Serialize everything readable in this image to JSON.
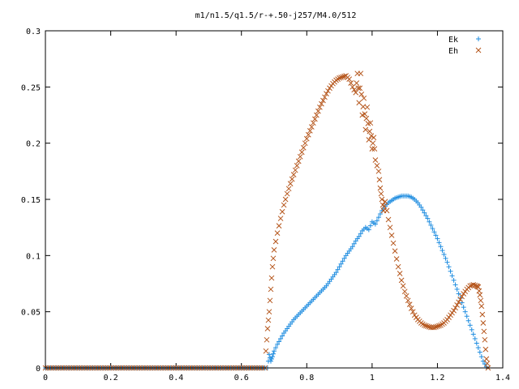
{
  "chart_data": {
    "type": "scatter",
    "title": "m1/n1.5/q1.5/r-+.50-j257/M4.0/512",
    "xlabel": "",
    "ylabel": "",
    "xlim": [
      0,
      1.4
    ],
    "ylim": [
      0,
      0.3
    ],
    "x_ticks": [
      "0",
      "0.2",
      "0.4",
      "0.6",
      "0.8",
      "1",
      "1.2",
      "1.4"
    ],
    "y_ticks": [
      "0",
      "0.05",
      "0.1",
      "0.15",
      "0.2",
      "0.25",
      "0.3"
    ],
    "legend_position": "top-right",
    "grid": false,
    "series": [
      {
        "name": "Ek",
        "marker": "plus",
        "color": "#1f8de0",
        "points": [
          [
            0.68,
            0.0
          ],
          [
            0.685,
            0.012
          ],
          [
            0.69,
            0.006
          ],
          [
            0.695,
            0.01
          ],
          [
            0.7,
            0.015
          ],
          [
            0.71,
            0.021
          ],
          [
            0.72,
            0.026
          ],
          [
            0.73,
            0.031
          ],
          [
            0.74,
            0.035
          ],
          [
            0.75,
            0.039
          ],
          [
            0.76,
            0.043
          ],
          [
            0.77,
            0.046
          ],
          [
            0.78,
            0.049
          ],
          [
            0.79,
            0.052
          ],
          [
            0.8,
            0.055
          ],
          [
            0.81,
            0.058
          ],
          [
            0.82,
            0.061
          ],
          [
            0.83,
            0.064
          ],
          [
            0.84,
            0.067
          ],
          [
            0.85,
            0.07
          ],
          [
            0.86,
            0.073
          ],
          [
            0.87,
            0.077
          ],
          [
            0.88,
            0.081
          ],
          [
            0.89,
            0.085
          ],
          [
            0.9,
            0.09
          ],
          [
            0.91,
            0.095
          ],
          [
            0.92,
            0.1
          ],
          [
            0.93,
            0.104
          ],
          [
            0.94,
            0.108
          ],
          [
            0.95,
            0.113
          ],
          [
            0.96,
            0.117
          ],
          [
            0.97,
            0.122
          ],
          [
            0.98,
            0.125
          ],
          [
            0.99,
            0.123
          ],
          [
            1.0,
            0.13
          ],
          [
            1.01,
            0.128
          ],
          [
            1.02,
            0.134
          ],
          [
            1.03,
            0.14
          ],
          [
            1.04,
            0.144
          ],
          [
            1.05,
            0.147
          ],
          [
            1.06,
            0.149
          ],
          [
            1.07,
            0.151
          ],
          [
            1.08,
            0.152
          ],
          [
            1.09,
            0.153
          ],
          [
            1.1,
            0.153
          ],
          [
            1.11,
            0.153
          ],
          [
            1.12,
            0.152
          ],
          [
            1.13,
            0.15
          ],
          [
            1.14,
            0.147
          ],
          [
            1.15,
            0.143
          ],
          [
            1.16,
            0.138
          ],
          [
            1.17,
            0.133
          ],
          [
            1.18,
            0.127
          ],
          [
            1.19,
            0.121
          ],
          [
            1.2,
            0.115
          ],
          [
            1.21,
            0.108
          ],
          [
            1.22,
            0.101
          ],
          [
            1.23,
            0.094
          ],
          [
            1.24,
            0.086
          ],
          [
            1.25,
            0.078
          ],
          [
            1.26,
            0.07
          ],
          [
            1.27,
            0.062
          ],
          [
            1.28,
            0.054
          ],
          [
            1.29,
            0.046
          ],
          [
            1.3,
            0.038
          ],
          [
            1.31,
            0.03
          ],
          [
            1.32,
            0.022
          ],
          [
            1.33,
            0.014
          ],
          [
            1.34,
            0.006
          ],
          [
            1.35,
            0.001
          ]
        ]
      },
      {
        "name": "Eh",
        "marker": "cross",
        "color": "#b5561c",
        "points": [
          [
            0.675,
            0.015
          ],
          [
            0.68,
            0.035
          ],
          [
            0.685,
            0.05
          ],
          [
            0.69,
            0.07
          ],
          [
            0.695,
            0.09
          ],
          [
            0.7,
            0.105
          ],
          [
            0.71,
            0.12
          ],
          [
            0.72,
            0.133
          ],
          [
            0.73,
            0.145
          ],
          [
            0.74,
            0.155
          ],
          [
            0.75,
            0.164
          ],
          [
            0.76,
            0.172
          ],
          [
            0.77,
            0.18
          ],
          [
            0.78,
            0.188
          ],
          [
            0.79,
            0.196
          ],
          [
            0.8,
            0.204
          ],
          [
            0.81,
            0.211
          ],
          [
            0.82,
            0.218
          ],
          [
            0.83,
            0.225
          ],
          [
            0.84,
            0.232
          ],
          [
            0.85,
            0.238
          ],
          [
            0.86,
            0.244
          ],
          [
            0.87,
            0.249
          ],
          [
            0.88,
            0.253
          ],
          [
            0.89,
            0.256
          ],
          [
            0.9,
            0.258
          ],
          [
            0.91,
            0.259
          ],
          [
            0.92,
            0.26
          ],
          [
            0.93,
            0.257
          ],
          [
            0.94,
            0.25
          ],
          [
            0.95,
            0.245
          ],
          [
            0.955,
            0.262
          ],
          [
            0.96,
            0.236
          ],
          [
            0.965,
            0.262
          ],
          [
            0.97,
            0.225
          ],
          [
            0.975,
            0.24
          ],
          [
            0.98,
            0.212
          ],
          [
            0.985,
            0.232
          ],
          [
            0.99,
            0.203
          ],
          [
            0.995,
            0.218
          ],
          [
            1.0,
            0.195
          ],
          [
            1.005,
            0.205
          ],
          [
            1.01,
            0.185
          ],
          [
            1.02,
            0.175
          ],
          [
            1.025,
            0.16
          ],
          [
            1.03,
            0.15
          ],
          [
            1.035,
            0.14
          ],
          [
            1.04,
            0.148
          ],
          [
            1.05,
            0.132
          ],
          [
            1.06,
            0.118
          ],
          [
            1.07,
            0.104
          ],
          [
            1.08,
            0.09
          ],
          [
            1.09,
            0.078
          ],
          [
            1.1,
            0.068
          ],
          [
            1.11,
            0.06
          ],
          [
            1.12,
            0.053
          ],
          [
            1.13,
            0.047
          ],
          [
            1.14,
            0.043
          ],
          [
            1.15,
            0.04
          ],
          [
            1.16,
            0.038
          ],
          [
            1.17,
            0.037
          ],
          [
            1.18,
            0.036
          ],
          [
            1.19,
            0.036
          ],
          [
            1.2,
            0.037
          ],
          [
            1.21,
            0.038
          ],
          [
            1.22,
            0.04
          ],
          [
            1.23,
            0.043
          ],
          [
            1.24,
            0.047
          ],
          [
            1.25,
            0.051
          ],
          [
            1.26,
            0.056
          ],
          [
            1.27,
            0.061
          ],
          [
            1.28,
            0.066
          ],
          [
            1.29,
            0.07
          ],
          [
            1.3,
            0.073
          ],
          [
            1.31,
            0.074
          ],
          [
            1.32,
            0.073
          ],
          [
            1.325,
            0.072
          ],
          [
            1.33,
            0.065
          ],
          [
            1.335,
            0.055
          ],
          [
            1.34,
            0.04
          ],
          [
            1.345,
            0.025
          ],
          [
            1.35,
            0.008
          ],
          [
            1.355,
            0.0
          ]
        ]
      }
    ]
  }
}
